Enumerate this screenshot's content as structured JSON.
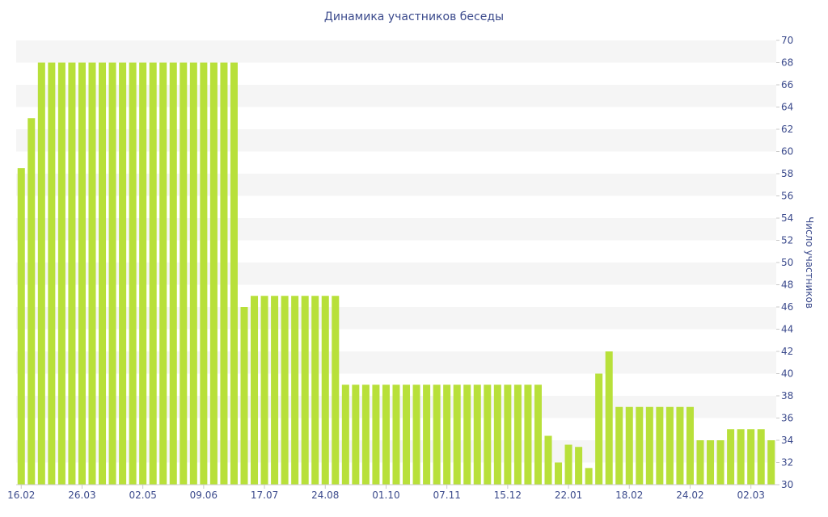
{
  "chart_data": {
    "type": "bar",
    "title": "Динамика участников беседы",
    "xlabel": "",
    "ylabel": "Число участников",
    "ylim": [
      30,
      70
    ],
    "y_ticks": [
      30,
      32,
      34,
      36,
      38,
      40,
      42,
      44,
      46,
      48,
      50,
      52,
      54,
      56,
      58,
      60,
      62,
      64,
      66,
      68,
      70
    ],
    "y_axis_side": "right",
    "grid": "alternating horizontal bands",
    "x_tick_labels": [
      "16.02",
      "26.03",
      "02.05",
      "09.06",
      "17.07",
      "24.08",
      "01.10",
      "07.11",
      "15.12",
      "22.01",
      "18.02",
      "24.02",
      "02.03"
    ],
    "x_tick_positions": [
      0,
      6,
      12,
      18,
      24,
      30,
      36,
      42,
      48,
      54,
      60,
      66,
      72
    ],
    "values": [
      58.5,
      63,
      68,
      68,
      68,
      68,
      68,
      68,
      68,
      68,
      68,
      68,
      68,
      68,
      68,
      68,
      68,
      68,
      68,
      68,
      68,
      68,
      46,
      47,
      47,
      47,
      47,
      47,
      47,
      47,
      47,
      47,
      39,
      39,
      39,
      39,
      39,
      39,
      39,
      39,
      39,
      39,
      39,
      39,
      39,
      39,
      39,
      39,
      39,
      39,
      39,
      39,
      34.4,
      32,
      33.6,
      33.4,
      31.5,
      40,
      42,
      37,
      37,
      37,
      37,
      37,
      37,
      37,
      37,
      34,
      34,
      34,
      35,
      35,
      35,
      35,
      34
    ],
    "colors": {
      "bar": "#b8e03a",
      "axis_text": "#3b4a8c",
      "band": "#f5f5f5"
    }
  }
}
